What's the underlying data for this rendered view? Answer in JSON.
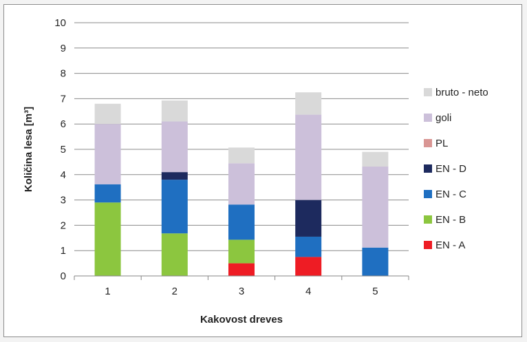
{
  "chart_data": {
    "type": "bar",
    "stacked": true,
    "categories": [
      "1",
      "2",
      "3",
      "4",
      "5"
    ],
    "series": [
      {
        "name": "EN - A",
        "color": "#ee1c24",
        "values": [
          0,
          0,
          0.5,
          0.75,
          0
        ]
      },
      {
        "name": "EN - B",
        "color": "#8cc63f",
        "values": [
          2.9,
          1.68,
          0.93,
          0,
          0
        ]
      },
      {
        "name": "EN - C",
        "color": "#1f6fc1",
        "values": [
          0.72,
          2.12,
          1.39,
          0.8,
          1.12
        ]
      },
      {
        "name": "EN - D",
        "color": "#1d2a5e",
        "values": [
          0,
          0.3,
          0,
          1.45,
          0
        ]
      },
      {
        "name": "PL",
        "color": "#d99694",
        "values": [
          0,
          0,
          0,
          0,
          0
        ]
      },
      {
        "name": "goli",
        "color": "#ccc0da",
        "values": [
          2.38,
          2,
          1.63,
          3.37,
          3.2
        ]
      },
      {
        "name": "bruto - neto",
        "color": "#d9d9d9",
        "values": [
          0.8,
          0.83,
          0.62,
          0.88,
          0.58
        ]
      }
    ],
    "xlabel": "Kakovost dreves",
    "ylabel": "Količina lesa [m³]",
    "ylim": [
      0,
      10
    ],
    "yticks": [
      "0",
      "1",
      "2",
      "3",
      "4",
      "5",
      "6",
      "7",
      "8",
      "9",
      "10"
    ],
    "grid": true,
    "legend_position": "right"
  }
}
